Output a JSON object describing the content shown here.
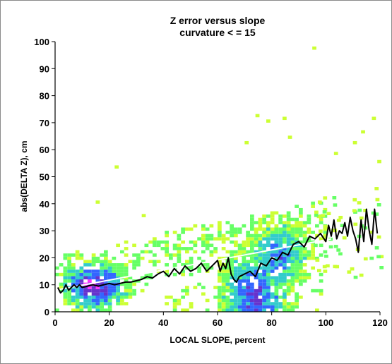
{
  "chart_data": {
    "type": "scatter",
    "title": "Z error versus slope",
    "subtitle": "curvature < = 15",
    "xlabel": "LOCAL SLOPE, percent",
    "ylabel": "abs(DELTA Z), cm",
    "xlim": [
      0,
      120
    ],
    "ylim": [
      0,
      100
    ],
    "x_ticks": [
      0,
      20,
      40,
      60,
      80,
      100,
      120
    ],
    "y_ticks": [
      0,
      10,
      20,
      30,
      40,
      50,
      60,
      70,
      80,
      90,
      100
    ],
    "grid": false,
    "colors": {
      "very_low": "#ccff33",
      "low": "#66ff66",
      "medium": "#33cccc",
      "high": "#3366ff",
      "higher": "#6633cc",
      "highest": "#ff33ff",
      "running_mean": "#000000",
      "fit_line": "#ffffff"
    },
    "fit_line": {
      "x": [
        0,
        102
      ],
      "y": [
        8,
        27
      ]
    },
    "running_mean": {
      "x": [
        1,
        2,
        3,
        4,
        5,
        6,
        7,
        8,
        9,
        10,
        12,
        14,
        16,
        18,
        20,
        22,
        24,
        26,
        28,
        30,
        32,
        34,
        36,
        38,
        40,
        42,
        44,
        46,
        48,
        50,
        52,
        54,
        56,
        58,
        60,
        61,
        62,
        63,
        64,
        65,
        66,
        67,
        68,
        70,
        72,
        74,
        76,
        78,
        80,
        82,
        84,
        86,
        88,
        90,
        92,
        94,
        96,
        98,
        100,
        101,
        102,
        103,
        104,
        105,
        106,
        107,
        108,
        109,
        110,
        111,
        112,
        113,
        114,
        115,
        116,
        117,
        118,
        119
      ],
      "y": [
        9,
        7,
        8,
        10,
        8,
        9,
        10,
        9,
        10,
        9,
        9.5,
        10,
        9.5,
        10,
        10.5,
        10,
        10.5,
        11,
        11,
        11.5,
        12,
        13,
        12.5,
        14,
        15,
        13,
        16,
        14,
        17,
        15,
        16,
        18,
        15,
        17,
        19,
        15,
        18,
        16,
        20,
        14,
        12,
        11,
        13,
        14,
        15,
        13,
        18,
        17,
        20,
        19,
        22,
        21,
        25,
        26,
        24,
        28,
        27,
        29,
        26,
        32,
        28,
        34,
        27,
        30,
        29,
        33,
        28,
        35,
        30,
        27,
        22,
        34,
        26,
        38,
        30,
        25,
        38,
        29
      ]
    },
    "density": {
      "note_levels": "0 = very_low, 1 = low, 2 = medium, 3 = high, 4 = higher, 5 = highest",
      "clusters": [
        {
          "x_range": [
            2,
            32
          ],
          "y_range": [
            0,
            22
          ],
          "peak_x": 14,
          "peak_y": 9,
          "peak_level": 5
        },
        {
          "x_range": [
            60,
            90
          ],
          "y_range": [
            0,
            44
          ],
          "peak_x": 73,
          "peak_y": 5,
          "peak_level": 4
        },
        {
          "x_range": [
            72,
            98
          ],
          "y_range": [
            10,
            42
          ],
          "peak_x": 82,
          "peak_y": 20,
          "peak_level": 3
        }
      ],
      "outliers": [
        {
          "x": 15,
          "y": 40
        },
        {
          "x": 22,
          "y": 53
        },
        {
          "x": 32,
          "y": 35
        },
        {
          "x": 70,
          "y": 62
        },
        {
          "x": 74,
          "y": 72
        },
        {
          "x": 78,
          "y": 70
        },
        {
          "x": 84,
          "y": 71
        },
        {
          "x": 86,
          "y": 64
        },
        {
          "x": 95,
          "y": 97
        },
        {
          "x": 103,
          "y": 58
        },
        {
          "x": 110,
          "y": 62
        },
        {
          "x": 113,
          "y": 66
        },
        {
          "x": 117,
          "y": 71
        },
        {
          "x": 118,
          "y": 45
        },
        {
          "x": 119,
          "y": 55
        }
      ]
    }
  }
}
